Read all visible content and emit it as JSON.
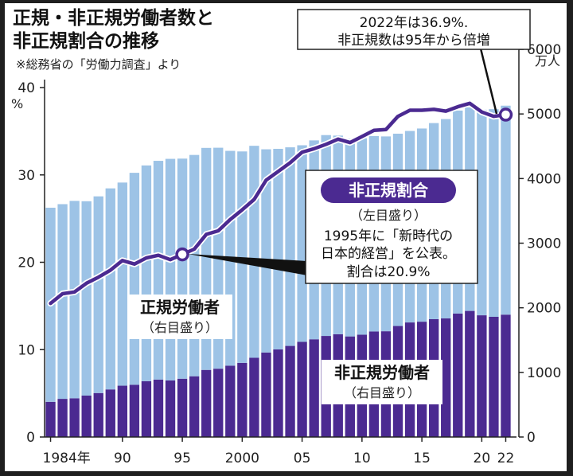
{
  "title": [
    "正規・非正規労働者数と",
    "非正規割合の推移"
  ],
  "source": "※総務省の「労働力調査」より",
  "left_unit": "%",
  "right_unit": "万人",
  "callout_top": [
    "2022年は36.9%.",
    "非正規数は95年から倍増"
  ],
  "legend_badge": "非正規割合",
  "legend_badge_sub": "（左目盛り）",
  "callout_mid": [
    "1995年に「新時代の",
    "日本的経営」を公表。",
    "割合は20.9%"
  ],
  "label_regular": "正規労働者",
  "label_regular_sub": "（右目盛り）",
  "label_nonregular": "非正規労働者",
  "label_nonregular_sub": "（右目盛り）",
  "colors": {
    "regular": "#9dc3e6",
    "nonregular": "#4b2a91",
    "line": "#4b2a91"
  },
  "chart_data": {
    "type": "bar",
    "stacked": true,
    "categories": [
      "1984",
      "1985",
      "1986",
      "1987",
      "1988",
      "1989",
      "1990",
      "1991",
      "1992",
      "1993",
      "1994",
      "1995",
      "1996",
      "1997",
      "1998",
      "1999",
      "2000",
      "2001",
      "2002",
      "2003",
      "2004",
      "2005",
      "2006",
      "2007",
      "2008",
      "2009",
      "2010",
      "2011",
      "2012",
      "2013",
      "2014",
      "2015",
      "2016",
      "2017",
      "2018",
      "2019",
      "2020",
      "2021",
      "2022"
    ],
    "x_tick_labels": [
      "1984年",
      "90",
      "95",
      "2000",
      "05",
      "10",
      "15",
      "20",
      "22"
    ],
    "x_tick_categories": [
      "1984",
      "1990",
      "1995",
      "2000",
      "2005",
      "2010",
      "2015",
      "2020",
      "2022"
    ],
    "y_left": {
      "ticks": [
        0,
        10,
        20,
        30,
        40
      ],
      "ylim": [
        0,
        40
      ],
      "unit": "%"
    },
    "y_right": {
      "ticks": [
        0,
        1000,
        2000,
        3000,
        4000,
        5000,
        6000
      ],
      "ylim": [
        0,
        6000
      ],
      "unit": "万人"
    },
    "series": [
      {
        "name": "非正規労働者",
        "axis": "right",
        "values": [
          604,
          655,
          665,
          711,
          755,
          817,
          881,
          897,
          958,
          986,
          971,
          1001,
          1043,
          1152,
          1173,
          1225,
          1273,
          1360,
          1451,
          1504,
          1564,
          1634,
          1678,
          1735,
          1765,
          1727,
          1756,
          1812,
          1816,
          1906,
          1967,
          1980,
          2023,
          2036,
          2120,
          2165,
          2090,
          2064,
          2101
        ]
      },
      {
        "name": "正規労働者",
        "axis": "right",
        "values": [
          3333,
          3343,
          3389,
          3337,
          3377,
          3452,
          3488,
          3639,
          3705,
          3756,
          3805,
          3779,
          3800,
          3812,
          3794,
          3688,
          3630,
          3640,
          3489,
          3444,
          3410,
          3375,
          3415,
          3449,
          3410,
          3395,
          3374,
          3355,
          3345,
          3302,
          3288,
          3317,
          3367,
          3423,
          3485,
          3494,
          3529,
          3565,
          3588
        ]
      },
      {
        "name": "非正規割合",
        "axis": "left",
        "values": [
          15.3,
          16.4,
          16.6,
          17.6,
          18.3,
          19.1,
          20.2,
          19.8,
          20.5,
          20.8,
          20.3,
          20.9,
          21.5,
          23.2,
          23.6,
          24.9,
          26.0,
          27.2,
          29.4,
          30.4,
          31.4,
          32.6,
          33.0,
          33.5,
          34.1,
          33.7,
          34.4,
          35.1,
          35.2,
          36.7,
          37.4,
          37.4,
          37.5,
          37.3,
          37.8,
          38.2,
          37.2,
          36.7,
          36.9
        ]
      }
    ],
    "annotations": [
      "2022年は36.9%. 非正規数は95年から倍増",
      "1995年に「新時代の日本的経営」を公表。割合は20.9%"
    ]
  }
}
